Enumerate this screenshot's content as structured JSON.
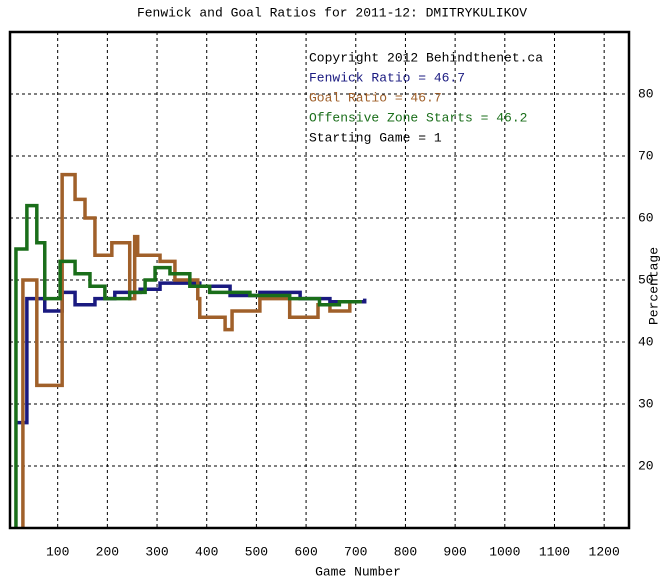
{
  "chart_data": {
    "type": "line",
    "step": "post",
    "title": "Fenwick and Goal Ratios for 2011-12: DMITRYKULIKOV",
    "xlabel": "Game Number",
    "ylabel": "Percentage",
    "annotations": [
      "Copyright 2012 Behindthenet.ca",
      "Starting Game = 1"
    ],
    "xlim": [
      0,
      1250
    ],
    "ylim": [
      10,
      90
    ],
    "xticks": [
      100,
      200,
      300,
      400,
      500,
      600,
      700,
      800,
      900,
      1000,
      1100,
      1200
    ],
    "yticks": [
      20,
      30,
      40,
      50,
      60,
      70,
      80
    ],
    "grid": true,
    "series": [
      {
        "name": "Fenwick Ratio = 46.7",
        "color": "#1a1a80",
        "x": [
          18,
          38,
          74,
          109,
          135,
          175,
          215,
          266,
          306,
          386,
          447,
          507,
          588,
          648,
          718
        ],
        "values": [
          27,
          47,
          45,
          48,
          46,
          47,
          48,
          48.5,
          49.5,
          49,
          47.5,
          48,
          47,
          46.5,
          47
        ]
      },
      {
        "name": "Goal Ratio = 46.7",
        "color": "#a0602a",
        "x": [
          28,
          30,
          58,
          109,
          135,
          155,
          175,
          209,
          245,
          255,
          261,
          306,
          336,
          382,
          386,
          437,
          451,
          507,
          567,
          624,
          648,
          688,
          712
        ],
        "values": [
          10,
          50,
          33,
          67,
          63,
          60,
          54,
          56,
          47,
          57,
          54,
          53,
          50,
          47,
          44,
          42,
          45,
          47,
          44,
          46,
          45,
          46.5,
          46.5
        ]
      },
      {
        "name": "Offensive Zone Starts = 46.2",
        "color": "#1a6e1a",
        "x": [
          14,
          16,
          38,
          58,
          74,
          105,
          135,
          165,
          195,
          245,
          276,
          296,
          326,
          366,
          406,
          487,
          567,
          627,
          667,
          712
        ],
        "values": [
          10,
          55,
          62,
          56,
          47,
          53,
          51,
          49,
          47,
          48,
          50,
          52,
          51,
          49,
          48,
          47.5,
          47,
          46,
          46.5,
          46.5
        ]
      }
    ]
  }
}
